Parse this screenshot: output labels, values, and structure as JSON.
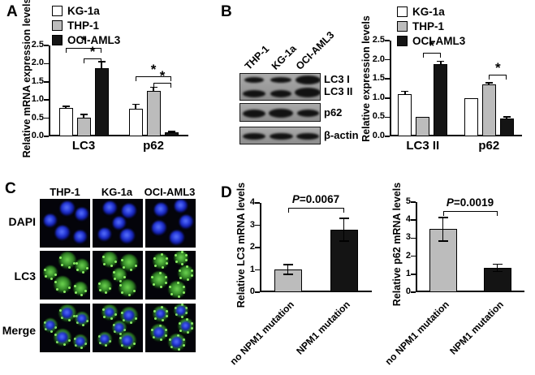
{
  "figure": {
    "panels": {
      "A": {
        "label": "A"
      },
      "B": {
        "label": "B",
        "blot": {
          "lanes": [
            "THP-1",
            "KG-1a",
            "OCI-AML3"
          ],
          "bands": [
            "LC3 I",
            "LC3 II",
            "p62",
            "β-actin"
          ]
        }
      },
      "C": {
        "label": "C",
        "columns": [
          "THP-1",
          "KG-1a",
          "OCI-AML3"
        ],
        "rows": [
          "DAPI",
          "LC3",
          "Merge"
        ]
      },
      "D": {
        "label": "D"
      }
    }
  },
  "colors": {
    "white_bar": "#ffffff",
    "gray_bar": "#bcbcbc",
    "black_bar": "#141414",
    "axis": "#000000",
    "dapi_blue": "#2336d6",
    "lc3_green": "#3a9b2a"
  },
  "chart_data": [
    {
      "id": "A",
      "panel": "A",
      "type": "bar",
      "ylabel": "Relative mRNA expression levels",
      "ylim": [
        0,
        2.5
      ],
      "yticks": [
        "0.0",
        "0.5",
        "1.0",
        "1.5",
        "2.0",
        "2.5"
      ],
      "categories": [
        "LC3",
        "p62"
      ],
      "series": [
        {
          "name": "KG-1a",
          "color": "#ffffff",
          "values": [
            0.78,
            0.75
          ],
          "errors": [
            0.05,
            0.13
          ]
        },
        {
          "name": "THP-1",
          "color": "#bcbcbc",
          "values": [
            0.51,
            1.25
          ],
          "errors": [
            0.09,
            0.1
          ]
        },
        {
          "name": "OCI-AML3",
          "color": "#141414",
          "values": [
            1.87,
            0.11
          ],
          "errors": [
            0.18,
            0.02
          ]
        }
      ],
      "legend": true,
      "legend_position": "top",
      "significance": [
        {
          "from": 0,
          "to": 2,
          "y": 2.43,
          "label": "*"
        },
        {
          "from": 1,
          "to": 2,
          "y": 2.14,
          "label": "*"
        },
        {
          "from": 3,
          "to": 5,
          "y": 1.65,
          "label": "*"
        },
        {
          "from": 4,
          "to": 5,
          "y": 1.47,
          "label": "*"
        }
      ]
    },
    {
      "id": "B",
      "panel": "B",
      "type": "bar",
      "ylabel": "Relative expression levels",
      "ylim": [
        0,
        2.5
      ],
      "yticks": [
        "0.0",
        "0.5",
        "1.0",
        "1.5",
        "2.0",
        "2.5"
      ],
      "categories": [
        "LC3 II",
        "p62"
      ],
      "series": [
        {
          "name": "KG-1a",
          "color": "#ffffff",
          "values": [
            1.1,
            1.0
          ],
          "errors": [
            0.08,
            0
          ]
        },
        {
          "name": "THP-1",
          "color": "#bcbcbc",
          "values": [
            0.5,
            1.35
          ],
          "errors": [
            0,
            0.05
          ]
        },
        {
          "name": "OCI-AML3",
          "color": "#141414",
          "values": [
            1.88,
            0.46
          ],
          "errors": [
            0.08,
            0.05
          ]
        }
      ],
      "legend": true,
      "legend_position": "top",
      "significance": [
        {
          "from": 1,
          "to": 2,
          "y": 2.18,
          "label": "*"
        },
        {
          "from": 4,
          "to": 5,
          "y": 1.61,
          "label": "*"
        }
      ]
    },
    {
      "id": "D1",
      "panel": "D",
      "type": "bar",
      "ylabel": "Relative LC3 mRNA levels",
      "ylim": [
        0,
        4
      ],
      "yticks": [
        "0",
        "1",
        "2",
        "3",
        "4"
      ],
      "categories": [
        "no NPM1 mutation",
        "NPM1 mutation"
      ],
      "series": [
        {
          "name": "",
          "colors": [
            "#bcbcbc",
            "#141414"
          ],
          "values": [
            1.02,
            2.8
          ],
          "errors": [
            0.22,
            0.5
          ]
        }
      ],
      "legend": false,
      "significance": [
        {
          "from": 0,
          "to": 1,
          "y": 3.78,
          "label": "P=0.0067"
        }
      ]
    },
    {
      "id": "D2",
      "panel": "D",
      "type": "bar",
      "ylabel": "Relative p62 mRNA levels",
      "ylim": [
        0,
        5
      ],
      "yticks": [
        "0",
        "1",
        "2",
        "3",
        "4",
        "5"
      ],
      "categories": [
        "no NPM1 mutation",
        "NPM1 mutation"
      ],
      "series": [
        {
          "name": "",
          "colors": [
            "#bcbcbc",
            "#141414"
          ],
          "values": [
            3.5,
            1.35
          ],
          "errors": [
            0.65,
            0.2
          ]
        }
      ],
      "legend": false,
      "significance": [
        {
          "from": 0,
          "to": 1,
          "y": 4.5,
          "label": "P=0.0019"
        }
      ]
    }
  ]
}
